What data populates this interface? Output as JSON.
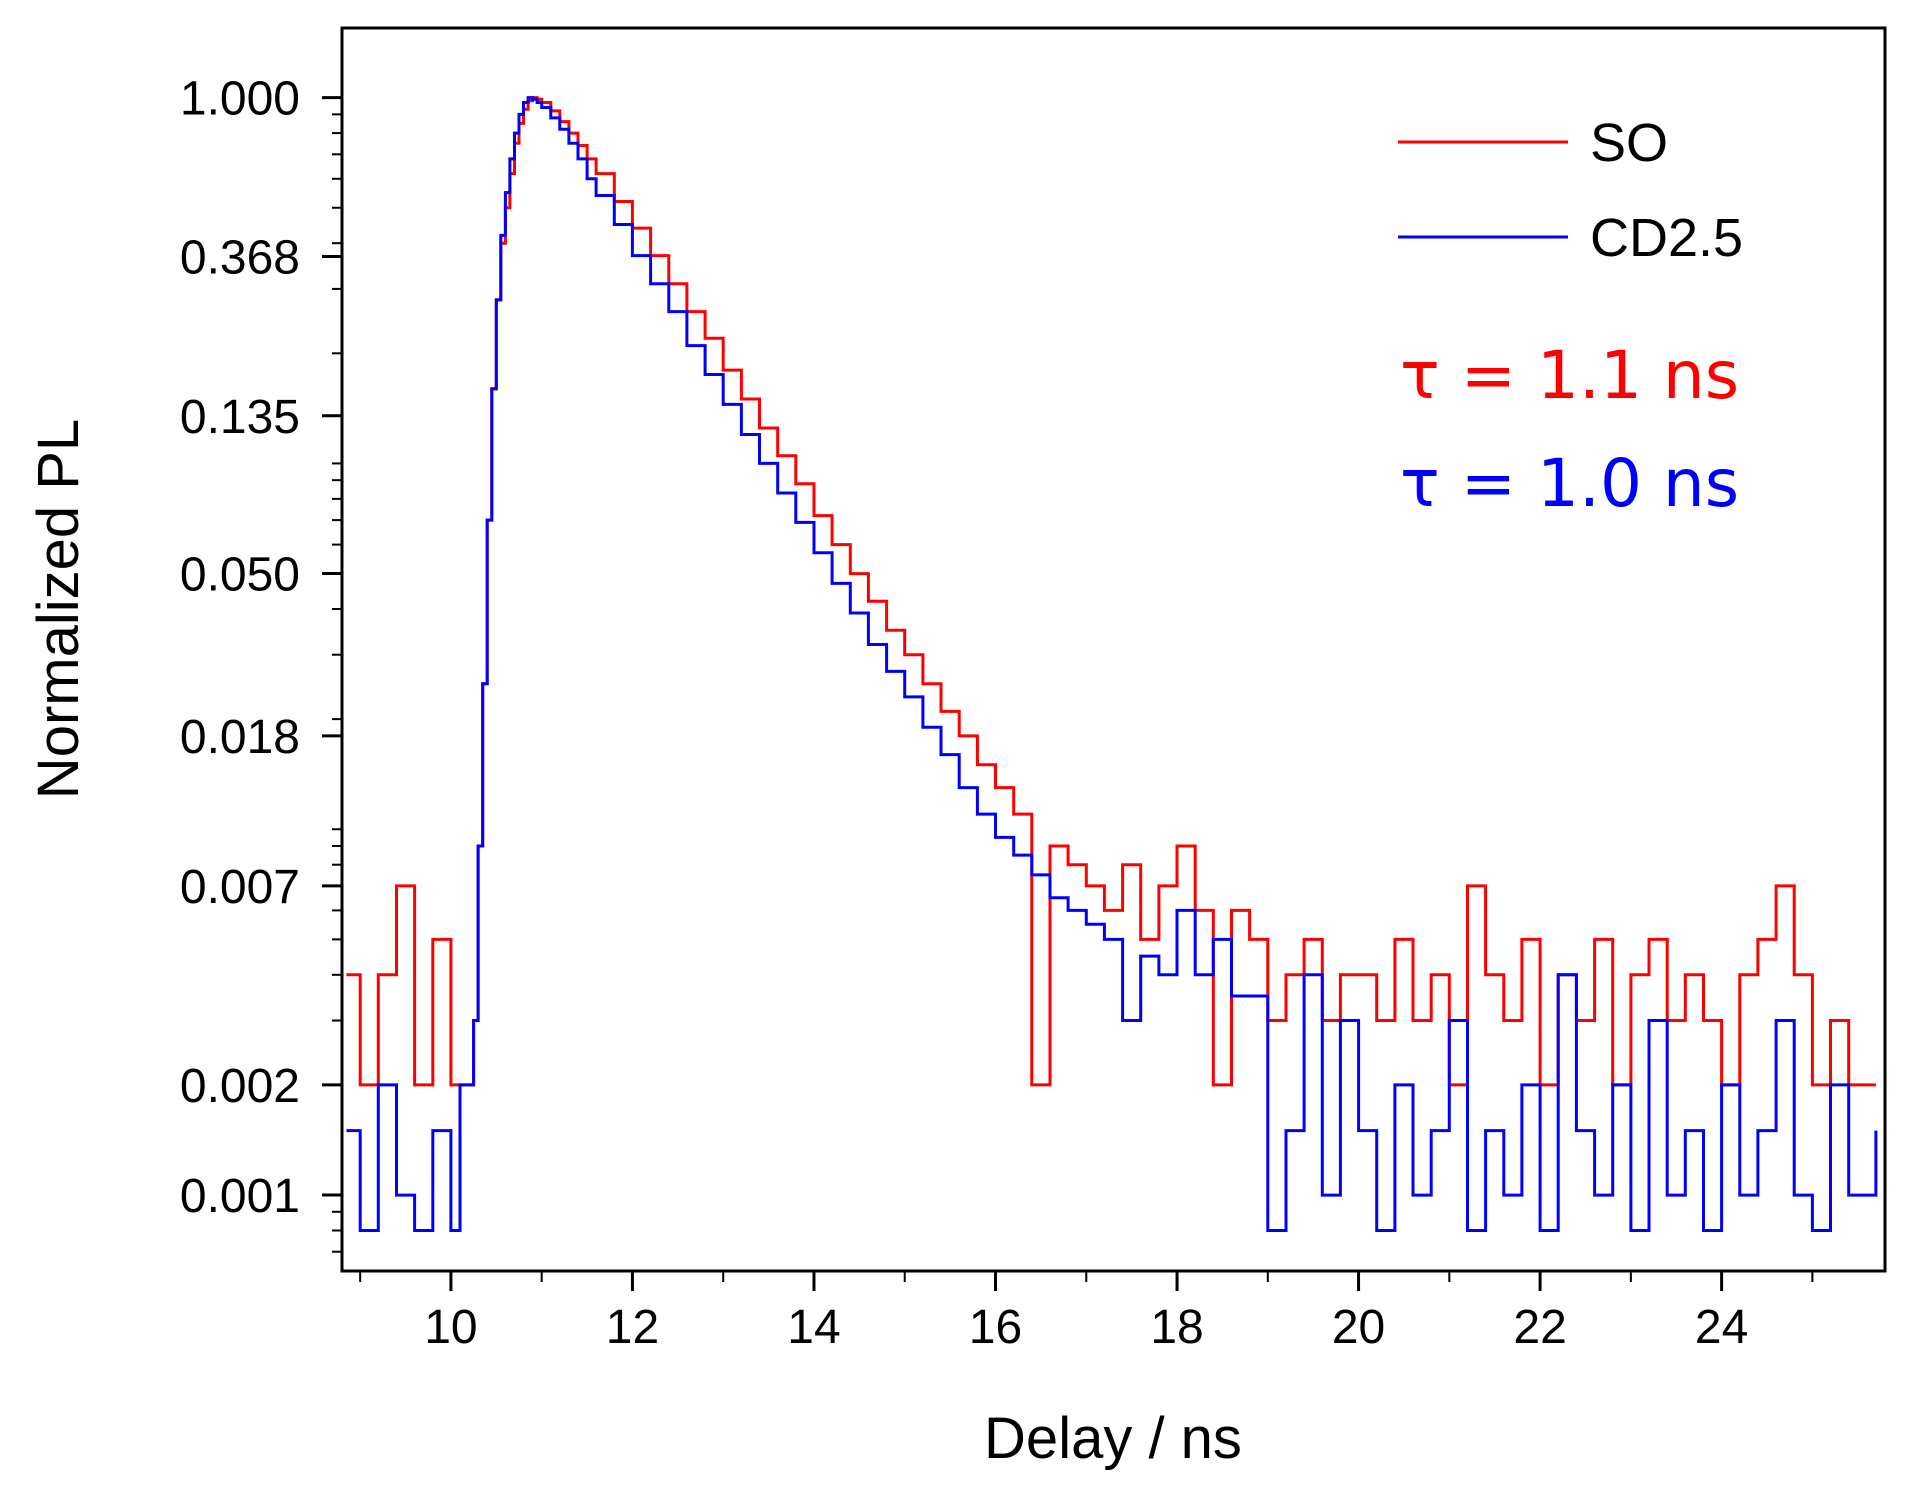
{
  "chart_data": {
    "type": "line",
    "title": "",
    "xlabel": "Delay / ns",
    "ylabel": "Normalized PL",
    "xlim": [
      8.8,
      25.8
    ],
    "ylim": [
      0.00062,
      1.55
    ],
    "yscale": "log",
    "grid": false,
    "xticks": [
      10,
      12,
      14,
      16,
      18,
      20,
      22,
      24
    ],
    "xtick_labels": [
      "10",
      "12",
      "14",
      "16",
      "18",
      "20",
      "22",
      "24"
    ],
    "yticks": [
      1.0,
      0.368,
      0.135,
      0.05,
      0.018,
      0.007,
      0.002,
      0.001
    ],
    "ytick_labels": [
      "1.000",
      "0.368",
      "0.135",
      "0.050",
      "0.018",
      "0.007",
      "0.002",
      "0.001"
    ],
    "legend": {
      "placement": "top-right",
      "entries": [
        "SO",
        "CD2.5"
      ]
    },
    "annotations": [
      {
        "text": "τ = 1.1 ns",
        "color": "#ff0000"
      },
      {
        "text": "τ = 1.0 ns",
        "color": "#0000ff"
      }
    ],
    "series": [
      {
        "name": "SO",
        "color": "#ff0000",
        "x": [
          8.85,
          9.0,
          9.2,
          9.4,
          9.6,
          9.8,
          10.0,
          10.1,
          10.2,
          10.25,
          10.3,
          10.35,
          10.4,
          10.45,
          10.5,
          10.55,
          10.6,
          10.65,
          10.7,
          10.75,
          10.8,
          10.85,
          10.9,
          10.95,
          11.0,
          11.1,
          11.2,
          11.3,
          11.4,
          11.5,
          11.6,
          11.8,
          12.0,
          12.2,
          12.4,
          12.6,
          12.8,
          13.0,
          13.2,
          13.4,
          13.6,
          13.8,
          14.0,
          14.2,
          14.4,
          14.6,
          14.8,
          15.0,
          15.2,
          15.4,
          15.6,
          15.8,
          16.0,
          16.2,
          16.4,
          16.6,
          16.8,
          17.0,
          17.2,
          17.4,
          17.6,
          17.8,
          18.0,
          18.2,
          18.4,
          18.6,
          18.8,
          19.0,
          19.2,
          19.4,
          19.6,
          19.8,
          20.0,
          20.2,
          20.4,
          20.6,
          20.8,
          21.0,
          21.2,
          21.4,
          21.6,
          21.8,
          22.0,
          22.2,
          22.4,
          22.6,
          22.8,
          23.0,
          23.2,
          23.4,
          23.6,
          23.8,
          24.0,
          24.2,
          24.4,
          24.6,
          24.8,
          25.0,
          25.2,
          25.4,
          25.7
        ],
        "y": [
          0.004,
          0.002,
          0.004,
          0.007,
          0.002,
          0.005,
          0.002,
          0.002,
          0.002,
          0.003,
          0.009,
          0.025,
          0.07,
          0.16,
          0.28,
          0.4,
          0.5,
          0.62,
          0.75,
          0.85,
          0.93,
          0.98,
          1.0,
          0.99,
          0.97,
          0.92,
          0.86,
          0.8,
          0.74,
          0.68,
          0.62,
          0.52,
          0.44,
          0.37,
          0.31,
          0.26,
          0.22,
          0.18,
          0.15,
          0.125,
          0.105,
          0.088,
          0.072,
          0.06,
          0.05,
          0.042,
          0.035,
          0.03,
          0.025,
          0.021,
          0.018,
          0.015,
          0.013,
          0.011,
          0.002,
          0.009,
          0.008,
          0.007,
          0.006,
          0.008,
          0.005,
          0.007,
          0.009,
          0.006,
          0.002,
          0.006,
          0.005,
          0.003,
          0.004,
          0.005,
          0.003,
          0.004,
          0.004,
          0.003,
          0.005,
          0.003,
          0.004,
          0.002,
          0.007,
          0.004,
          0.003,
          0.005,
          0.002,
          0.004,
          0.003,
          0.005,
          0.002,
          0.004,
          0.005,
          0.003,
          0.004,
          0.003,
          0.002,
          0.004,
          0.005,
          0.007,
          0.004,
          0.002,
          0.003,
          0.002,
          0.002
        ]
      },
      {
        "name": "CD2.5",
        "color": "#0000ff",
        "x": [
          8.85,
          9.0,
          9.2,
          9.4,
          9.6,
          9.8,
          10.0,
          10.1,
          10.2,
          10.25,
          10.3,
          10.35,
          10.4,
          10.45,
          10.5,
          10.55,
          10.6,
          10.65,
          10.7,
          10.75,
          10.8,
          10.85,
          10.9,
          10.95,
          11.0,
          11.1,
          11.2,
          11.3,
          11.4,
          11.5,
          11.6,
          11.8,
          12.0,
          12.2,
          12.4,
          12.6,
          12.8,
          13.0,
          13.2,
          13.4,
          13.6,
          13.8,
          14.0,
          14.2,
          14.4,
          14.6,
          14.8,
          15.0,
          15.2,
          15.4,
          15.6,
          15.8,
          16.0,
          16.2,
          16.4,
          16.6,
          16.8,
          17.0,
          17.2,
          17.4,
          17.6,
          17.8,
          18.0,
          18.2,
          18.4,
          18.6,
          18.8,
          19.0,
          19.2,
          19.4,
          19.6,
          19.8,
          20.0,
          20.2,
          20.4,
          20.6,
          20.8,
          21.0,
          21.2,
          21.4,
          21.6,
          21.8,
          22.0,
          22.2,
          22.4,
          22.6,
          22.8,
          23.0,
          23.2,
          23.4,
          23.6,
          23.8,
          24.0,
          24.2,
          24.4,
          24.6,
          24.8,
          25.0,
          25.2,
          25.4,
          25.7
        ],
        "y": [
          0.0015,
          0.0008,
          0.002,
          0.001,
          0.0008,
          0.0015,
          0.0008,
          0.002,
          0.002,
          0.003,
          0.009,
          0.025,
          0.07,
          0.16,
          0.28,
          0.42,
          0.55,
          0.68,
          0.8,
          0.9,
          0.97,
          1.0,
          0.99,
          0.97,
          0.94,
          0.88,
          0.82,
          0.75,
          0.68,
          0.6,
          0.54,
          0.45,
          0.37,
          0.31,
          0.26,
          0.21,
          0.175,
          0.145,
          0.12,
          0.1,
          0.083,
          0.069,
          0.057,
          0.047,
          0.039,
          0.032,
          0.027,
          0.023,
          0.019,
          0.016,
          0.013,
          0.011,
          0.0095,
          0.0085,
          0.0075,
          0.0065,
          0.006,
          0.0055,
          0.005,
          0.003,
          0.0045,
          0.004,
          0.006,
          0.004,
          0.005,
          0.0035,
          0.0035,
          0.0008,
          0.0015,
          0.004,
          0.001,
          0.003,
          0.0015,
          0.0008,
          0.002,
          0.001,
          0.0015,
          0.003,
          0.0008,
          0.0015,
          0.001,
          0.002,
          0.0008,
          0.004,
          0.0015,
          0.001,
          0.002,
          0.0008,
          0.003,
          0.001,
          0.0015,
          0.0008,
          0.002,
          0.001,
          0.0015,
          0.003,
          0.001,
          0.0008,
          0.002,
          0.001,
          0.0015
        ]
      }
    ]
  }
}
